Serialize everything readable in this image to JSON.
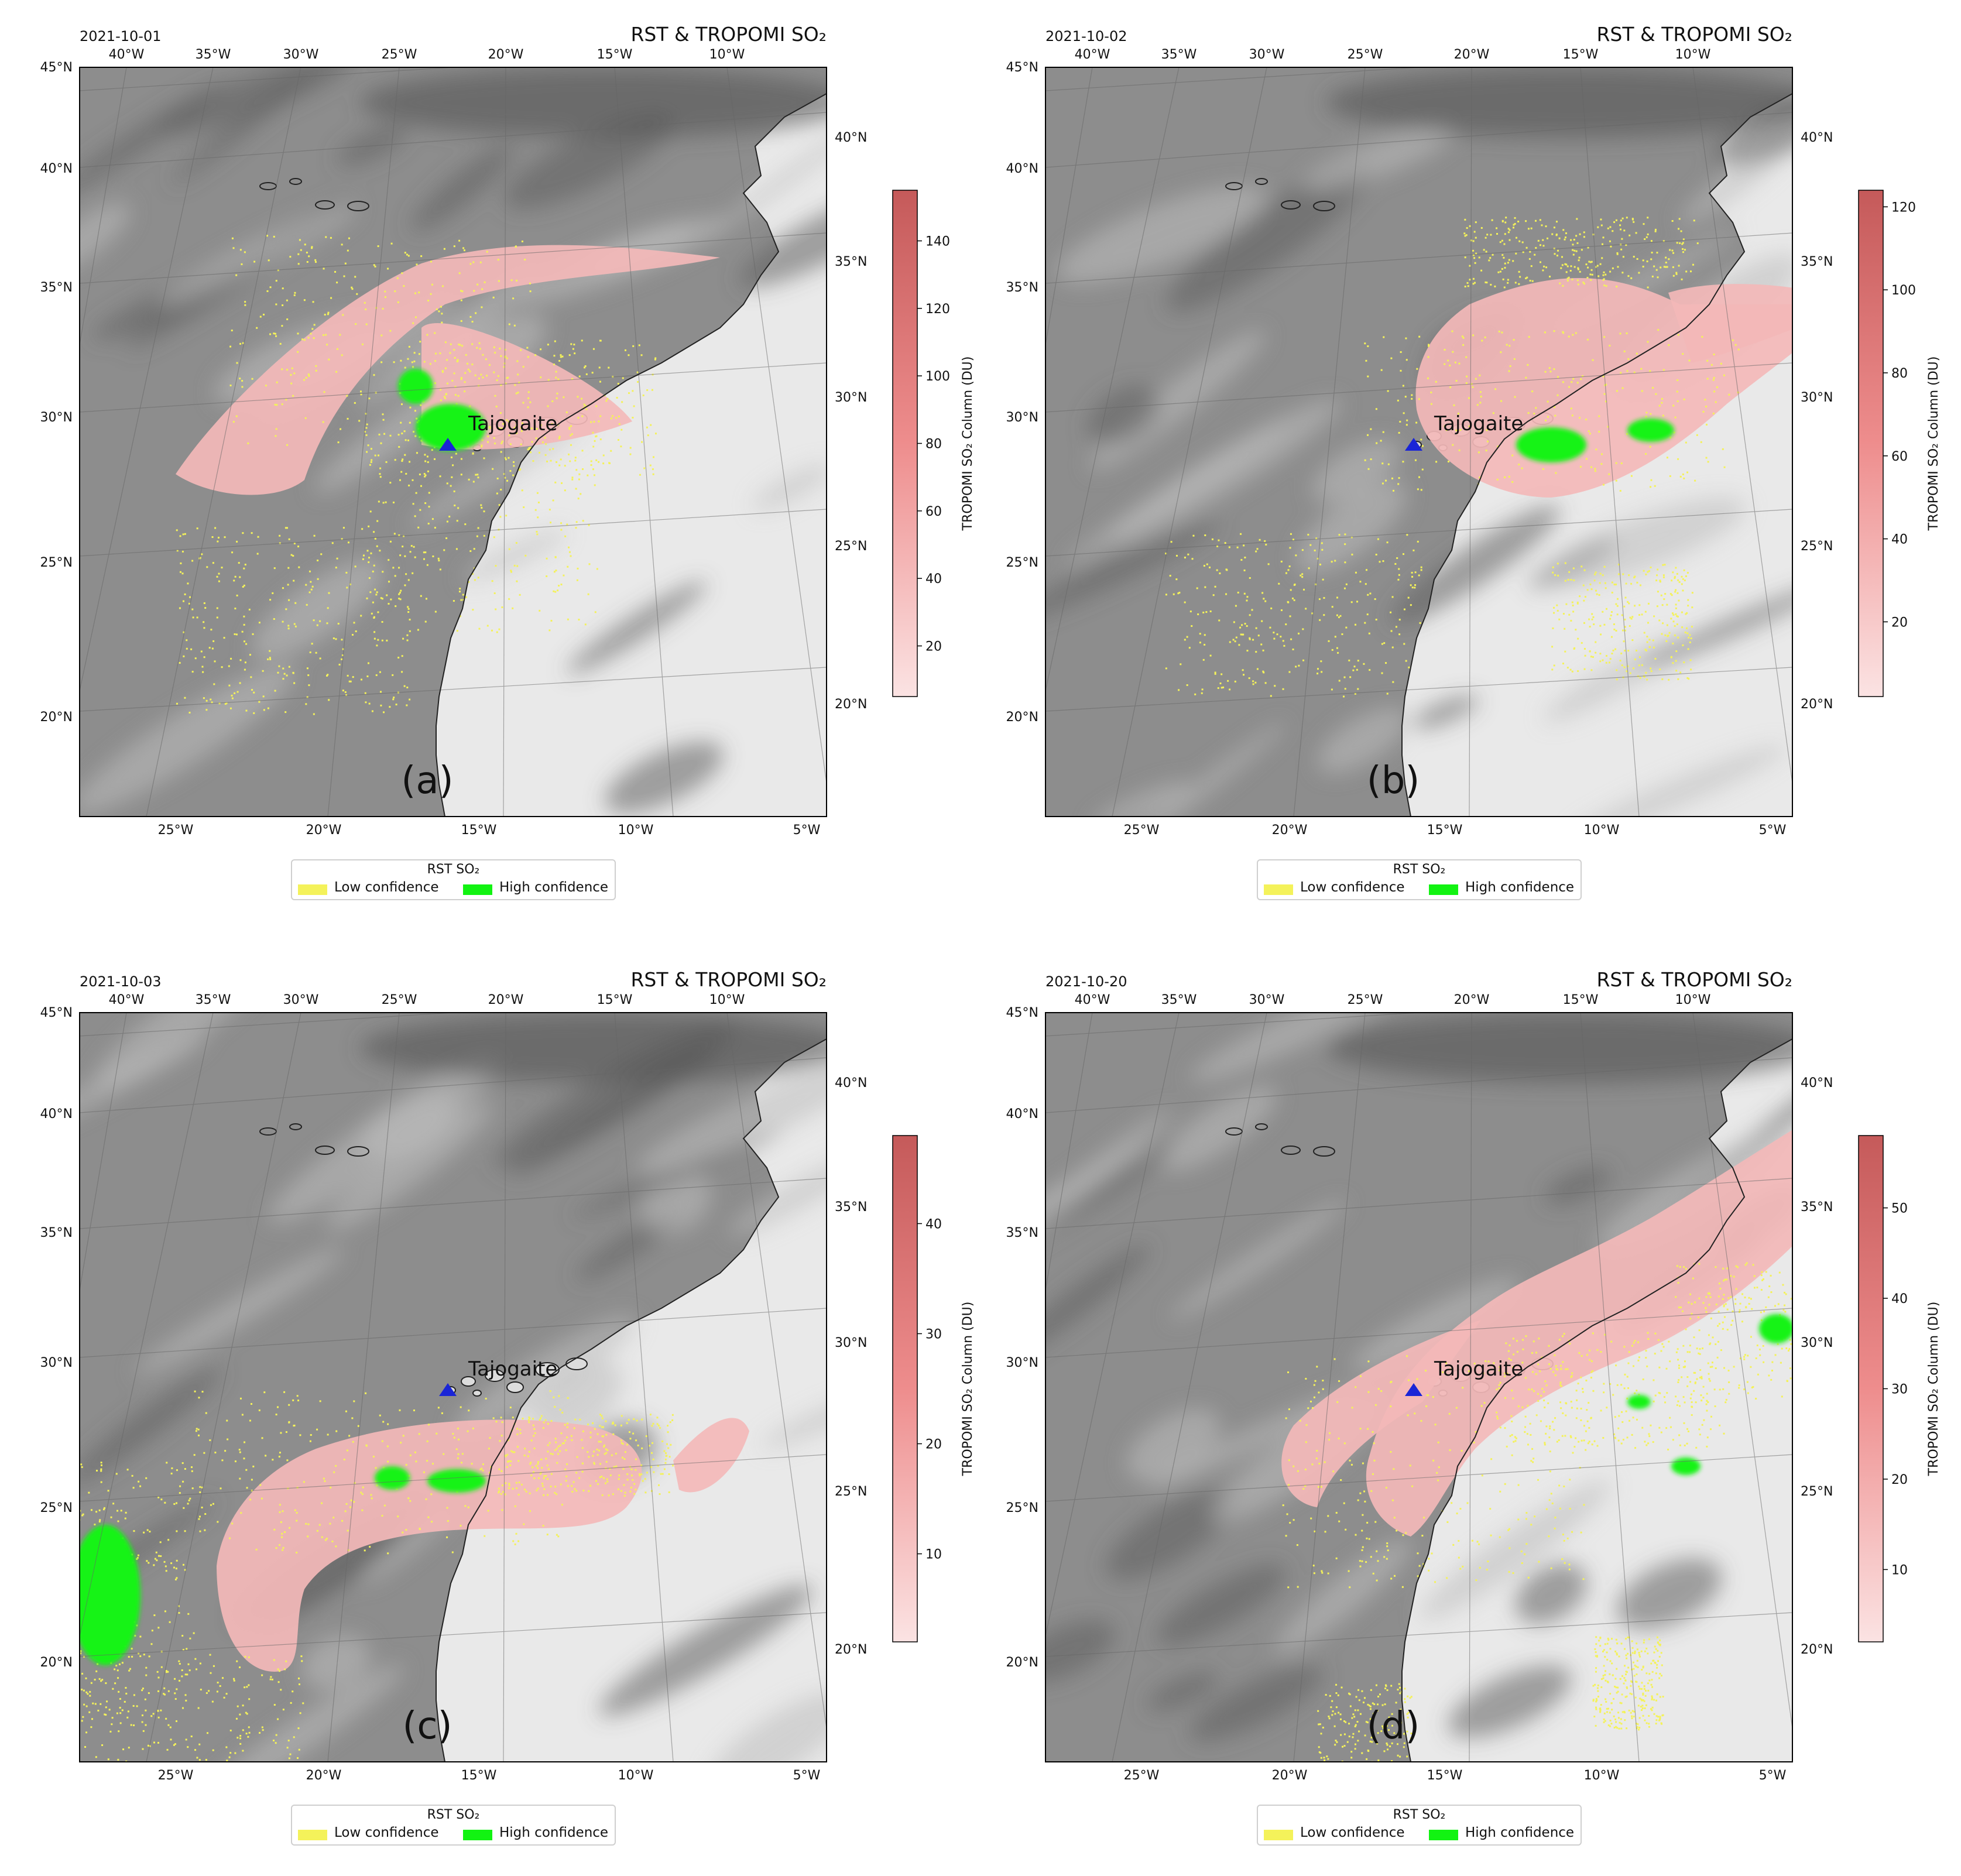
{
  "colors": {
    "ocean": "#8d8d8d",
    "land": "#e9e9e9",
    "tropomi": "#f3b8b8",
    "low_confidence": "#f4f25a",
    "high_confidence": "#12f312",
    "volcano_label": "#1a25d6"
  },
  "panels": [
    {
      "id": "a",
      "date": "2021-10-01",
      "title": "RST & TROPOMI SO₂",
      "panel_label": "(a)",
      "volcano_label": "Tajogaite",
      "top_lon_labels": [
        "40°W",
        "35°W",
        "30°W",
        "25°W",
        "20°W",
        "15°W",
        "10°W"
      ],
      "bottom_lon_labels": [
        "25°W",
        "20°W",
        "15°W",
        "10°W",
        "5°W"
      ],
      "left_lat_labels": [
        "45°N",
        "40°N",
        "35°N",
        "30°N",
        "25°N",
        "20°N"
      ],
      "right_lat_labels": [
        "40°N",
        "35°N",
        "30°N",
        "25°N",
        "20°N"
      ],
      "colorbar": {
        "label": "TROPOMI SO₂ Column (DU)",
        "ticks": [
          "140",
          "120",
          "100",
          "80",
          "60",
          "40",
          "20"
        ],
        "max": 155,
        "min": 5
      },
      "legend": {
        "title": "RST SO₂",
        "low": "Low confidence",
        "high": "High confidence"
      }
    },
    {
      "id": "b",
      "date": "2021-10-02",
      "title": "RST & TROPOMI SO₂",
      "panel_label": "(b)",
      "volcano_label": "Tajogaite",
      "top_lon_labels": [
        "40°W",
        "35°W",
        "30°W",
        "25°W",
        "20°W",
        "15°W",
        "10°W"
      ],
      "bottom_lon_labels": [
        "25°W",
        "20°W",
        "15°W",
        "10°W",
        "5°W"
      ],
      "left_lat_labels": [
        "45°N",
        "40°N",
        "35°N",
        "30°N",
        "25°N",
        "20°N"
      ],
      "right_lat_labels": [
        "40°N",
        "35°N",
        "30°N",
        "25°N",
        "20°N"
      ],
      "colorbar": {
        "label": "TROPOMI SO₂ Column (DU)",
        "ticks": [
          "120",
          "100",
          "80",
          "60",
          "40",
          "20"
        ],
        "max": 124,
        "min": 2
      },
      "legend": {
        "title": "RST SO₂",
        "low": "Low confidence",
        "high": "High confidence"
      }
    },
    {
      "id": "c",
      "date": "2021-10-03",
      "title": "RST & TROPOMI SO₂",
      "panel_label": "(c)",
      "volcano_label": "Tajogaite",
      "top_lon_labels": [
        "40°W",
        "35°W",
        "30°W",
        "25°W",
        "20°W",
        "15°W",
        "10°W"
      ],
      "bottom_lon_labels": [
        "25°W",
        "20°W",
        "15°W",
        "10°W",
        "5°W"
      ],
      "left_lat_labels": [
        "45°N",
        "40°N",
        "35°N",
        "30°N",
        "25°N",
        "20°N"
      ],
      "right_lat_labels": [
        "40°N",
        "35°N",
        "30°N",
        "25°N",
        "20°N"
      ],
      "colorbar": {
        "label": "TROPOMI SO₂ Column (DU)",
        "ticks": [
          "40",
          "30",
          "20",
          "10"
        ],
        "max": 48,
        "min": 2
      },
      "legend": {
        "title": "RST SO₂",
        "low": "Low confidence",
        "high": "High confidence"
      }
    },
    {
      "id": "d",
      "date": "2021-10-20",
      "title": "RST & TROPOMI SO₂",
      "panel_label": "(d)",
      "volcano_label": "Tajogaite",
      "top_lon_labels": [
        "40°W",
        "35°W",
        "30°W",
        "25°W",
        "20°W",
        "15°W",
        "10°W"
      ],
      "bottom_lon_labels": [
        "25°W",
        "20°W",
        "15°W",
        "10°W",
        "5°W"
      ],
      "left_lat_labels": [
        "45°N",
        "40°N",
        "35°N",
        "30°N",
        "25°N",
        "20°N"
      ],
      "right_lat_labels": [
        "40°N",
        "35°N",
        "30°N",
        "25°N",
        "20°N"
      ],
      "colorbar": {
        "label": "TROPOMI SO₂ Column (DU)",
        "ticks": [
          "50",
          "40",
          "30",
          "20",
          "10"
        ],
        "max": 58,
        "min": 2
      },
      "legend": {
        "title": "RST SO₂",
        "low": "Low confidence",
        "high": "High confidence"
      }
    }
  ]
}
